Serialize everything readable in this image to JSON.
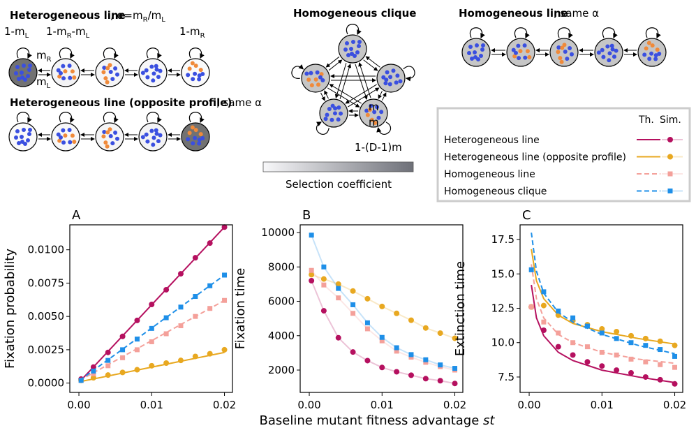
{
  "diagrams": [
    {
      "title": "Heterogeneous line",
      "note": [
        ", α=m",
        "R",
        "/m",
        "L"
      ],
      "loops": [
        [
          "1-m",
          "L"
        ],
        [
          "1-m",
          "R",
          "-m",
          "L"
        ],
        [
          "1-m",
          "R"
        ]
      ],
      "rates": [
        [
          "m",
          "R"
        ],
        [
          "m",
          "L"
        ]
      ]
    },
    {
      "title": "Heterogeneous line (opposite profile)",
      "note": ", same α"
    },
    {
      "title": "Homogeneous clique",
      "rates": [
        "m",
        "m"
      ],
      "loop": "1-(D-1)m"
    },
    {
      "title": "Homogeneous line",
      "note": ", same α"
    }
  ],
  "colorbar_label": "Selection coefficient",
  "legend_headers": [
    "Th.",
    "Sim."
  ],
  "xlabel": [
    "Baseline mutant fitness advantage ",
    "st"
  ],
  "chart_data": [
    {
      "type": "line",
      "panel": "A",
      "ylabel": "Fixation probability",
      "x": [
        0.0003,
        0.002,
        0.004,
        0.006,
        0.008,
        0.01,
        0.012,
        0.014,
        0.016,
        0.018,
        0.02
      ],
      "theory_x": [
        0.0001,
        0.02
      ],
      "xlim": [
        -0.00125,
        0.0211
      ],
      "xticks": [
        {
          "value": 0,
          "label": "0.00"
        },
        0.01,
        0.02
      ],
      "ylim": [
        -0.0007,
        0.01187
      ],
      "yticks": [
        {
          "value": 0,
          "label": "0.0000"
        },
        {
          "value": 0.0025,
          "label": "0.0025"
        },
        {
          "value": 0.005,
          "label": "0.0050"
        },
        {
          "value": 0.0075,
          "label": "0.0075"
        },
        {
          "value": 0.01,
          "label": "0.0100"
        }
      ],
      "series": [
        {
          "name": "Heterogeneous line",
          "color": "#b5105f",
          "linestyle": "solid",
          "marker": "circle",
          "values": [
            0.0003,
            0.0012,
            0.0023,
            0.0035,
            0.0047,
            0.0059,
            0.007,
            0.0082,
            0.0094,
            0.0105,
            0.0117
          ],
          "theory": [
            0.0001,
            0.0117
          ]
        },
        {
          "name": "Heterogeneous line (opposite profile)",
          "color": "#e8a820",
          "linestyle": "solid",
          "marker": "circle",
          "values": [
            0.0002,
            0.0004,
            0.0006,
            0.0008,
            0.001,
            0.0013,
            0.0015,
            0.0017,
            0.002,
            0.0022,
            0.0025
          ],
          "theory": [
            0.0001,
            0.0023
          ]
        },
        {
          "name": "Homogeneous line",
          "color": "#f4a09a",
          "linestyle": "dashed",
          "marker": "square",
          "values": [
            0.0002,
            0.0007,
            0.0013,
            0.0019,
            0.0025,
            0.0031,
            0.0037,
            0.0043,
            0.005,
            0.0056,
            0.0062
          ],
          "theory": [
            0.0002,
            0.0062
          ]
        },
        {
          "name": "Homogeneous clique",
          "color": "#1e8fe8",
          "linestyle": "dashed",
          "marker": "square",
          "values": [
            0.0002,
            0.0009,
            0.0017,
            0.0025,
            0.0033,
            0.0041,
            0.0049,
            0.0057,
            0.0065,
            0.0073,
            0.0081
          ],
          "theory": [
            0.0002,
            0.0081
          ]
        }
      ]
    },
    {
      "type": "line",
      "panel": "B",
      "ylabel": "Fixation time",
      "connect_points": true,
      "x": [
        0.0003,
        0.002,
        0.004,
        0.006,
        0.008,
        0.01,
        0.012,
        0.014,
        0.016,
        0.018,
        0.02
      ],
      "xlim": [
        -0.00125,
        0.0211
      ],
      "xticks": [
        {
          "value": 0,
          "label": "0.00"
        },
        0.01,
        0.02
      ],
      "ylim": [
        700,
        10450
      ],
      "yticks": [
        2000,
        4000,
        6000,
        8000,
        10000
      ],
      "series": [
        {
          "color": "#b5105f",
          "marker": "circle",
          "values": [
            7200,
            5450,
            3880,
            3050,
            2550,
            2150,
            1900,
            1700,
            1500,
            1380,
            1220
          ]
        },
        {
          "color": "#e8a820",
          "marker": "circle",
          "values": [
            7550,
            7300,
            7000,
            6600,
            6150,
            5700,
            5300,
            4900,
            4450,
            4150,
            3850
          ]
        },
        {
          "color": "#f4a09a",
          "marker": "square",
          "values": [
            7800,
            6950,
            6200,
            5300,
            4400,
            3700,
            3100,
            2750,
            2450,
            2200,
            2000
          ]
        },
        {
          "color": "#1e8fe8",
          "marker": "square",
          "values": [
            9850,
            8000,
            6750,
            5800,
            4750,
            3900,
            3300,
            2900,
            2600,
            2300,
            2100
          ]
        }
      ]
    },
    {
      "type": "line",
      "panel": "C",
      "ylabel": "Extinction time",
      "x": [
        0.0003,
        0.002,
        0.004,
        0.006,
        0.008,
        0.01,
        0.012,
        0.014,
        0.016,
        0.018,
        0.02
      ],
      "theory_x": [
        0.0003,
        0.001,
        0.002,
        0.004,
        0.006,
        0.01,
        0.015,
        0.02
      ],
      "xlim": [
        -0.00125,
        0.0211
      ],
      "xticks": [
        {
          "value": 0,
          "label": "0.00"
        },
        0.01,
        0.02
      ],
      "ylim": [
        6.38,
        18.57
      ],
      "yticks": [
        7.5,
        {
          "value": 10,
          "label": "10.0"
        },
        12.5,
        {
          "value": 15,
          "label": "15.0"
        },
        17.5
      ],
      "series": [
        {
          "color": "#b5105f",
          "linestyle": "solid",
          "marker": "circle",
          "values": [
            12.6,
            10.9,
            9.7,
            9.1,
            8.6,
            8.3,
            8.0,
            7.8,
            7.5,
            7.3,
            7.0
          ],
          "theory": [
            14.2,
            11.8,
            10.5,
            9.3,
            8.7,
            8.0,
            7.5,
            7.1
          ]
        },
        {
          "color": "#e8a820",
          "linestyle": "solid",
          "marker": "circle",
          "values": [
            12.6,
            12.7,
            12.0,
            11.6,
            11.3,
            11.0,
            10.8,
            10.5,
            10.3,
            10.1,
            9.8
          ],
          "theory": [
            16.8,
            14.5,
            13.2,
            12.0,
            11.4,
            10.8,
            10.3,
            9.9
          ]
        },
        {
          "color": "#f4a09a",
          "linestyle": "dashed",
          "marker": "square",
          "values": [
            12.6,
            11.5,
            10.7,
            10.0,
            9.7,
            9.3,
            9.1,
            8.8,
            8.6,
            8.4,
            8.2
          ],
          "theory": [
            15.7,
            13.2,
            11.8,
            10.6,
            10.0,
            9.3,
            8.8,
            8.5
          ]
        },
        {
          "color": "#1e8fe8",
          "linestyle": "dashed",
          "marker": "square",
          "values": [
            15.3,
            13.7,
            12.3,
            11.8,
            11.2,
            10.7,
            10.3,
            10.0,
            9.8,
            9.5,
            9.0
          ],
          "theory": [
            18.0,
            15.2,
            13.6,
            12.2,
            11.5,
            10.6,
            9.8,
            9.2
          ]
        }
      ]
    }
  ]
}
